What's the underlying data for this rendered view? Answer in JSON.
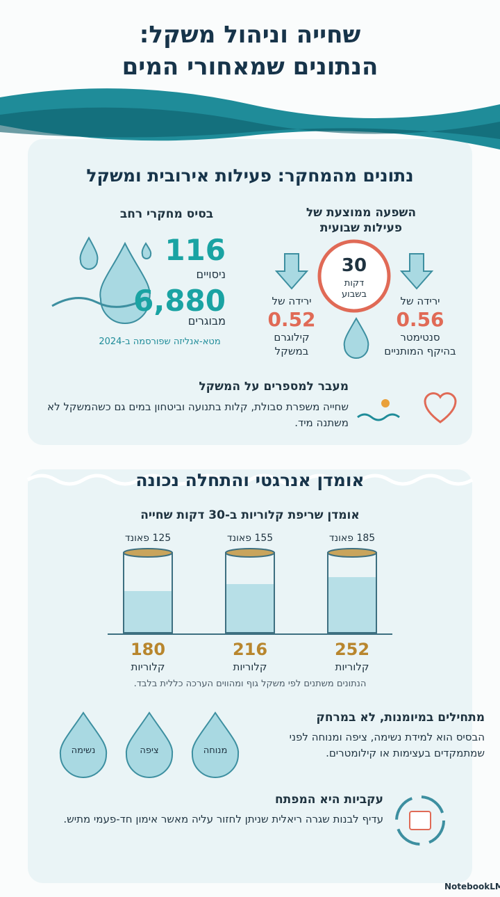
{
  "header": {
    "title_lines": [
      "שחייה וניהול משקל:",
      "הנתונים שמאחורי המים"
    ]
  },
  "research": {
    "heading": "נתונים מהמחקר: פעילות אירובית ומשקל",
    "base": {
      "title": "בסיס מחקרי רחב",
      "studies_value": "116",
      "studies_label": "ניסויים",
      "adults_value": "6,880",
      "adults_label": "מבוגרים",
      "note": "מטא-אנליזה שפורסמה ב-2024"
    },
    "effect": {
      "title_lines": [
        "השפעה ממוצעת של",
        "פעילות שבועית"
      ],
      "clock": {
        "value": "30",
        "unit": "דקות",
        "period": "בשבוע"
      },
      "weight": {
        "prefix": "ירידה של",
        "value": "0.52",
        "unit": "קילוגרם",
        "detail": "במשקל"
      },
      "waist": {
        "prefix": "ירידה של",
        "value": "0.56",
        "unit": "סנטימטר",
        "detail": "בהיקף המותניים"
      }
    },
    "beyond": {
      "title": "מעבר למספרים על המשקל",
      "text": "שחייה משפרת סבולת, קלות בתנועה וביטחון במים גם כשהמשקל לא משתנה מיד."
    }
  },
  "energy": {
    "heading": "אומדן אנרגטי והתחלה נכונה",
    "calories": {
      "title": "אומדן שריפת קלוריות ב-30 דקות שחייה",
      "glasses": [
        {
          "weight": "185 פאונד",
          "value": "252",
          "unit": "קלוריות"
        },
        {
          "weight": "155 פאונד",
          "value": "216",
          "unit": "קלוריות"
        },
        {
          "weight": "125 פאונד",
          "value": "180",
          "unit": "קלוריות"
        }
      ],
      "note": "הנתונים משתנים לפי משקל גוף ומהווים הערכה כללית בלבד."
    },
    "start": {
      "title": "מתחילים במיומנות, לא במרחק",
      "text": "הבסיס הוא למידת נשימה, ציפה ומנוחה לפני שמתמקדים בעצימות או קילומטרים.",
      "drops": [
        "מנוחה",
        "ציפה",
        "נשימה"
      ]
    },
    "consistency": {
      "title": "עקביות היא המפתח",
      "text": "עדיף לבנות שגרה ריאלית שניתן לחזור עליה מאשר אימון חד-פעמי מתיש."
    }
  },
  "footer": {
    "brand": "NotebookLM"
  }
}
